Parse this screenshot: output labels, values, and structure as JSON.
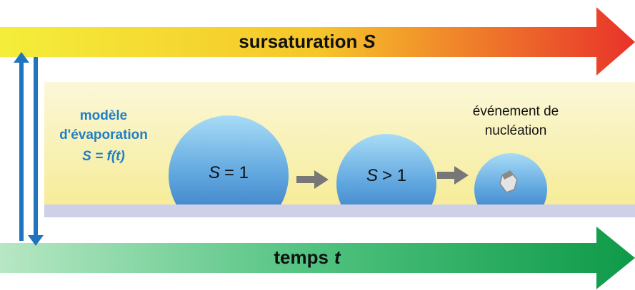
{
  "top_arrow": {
    "label": "sursaturation",
    "symbol": "S"
  },
  "bottom_arrow": {
    "label": "temps",
    "symbol": "t"
  },
  "model": {
    "lines": [
      "modèle",
      "d'évaporation"
    ],
    "equation": "S = f(t)"
  },
  "droplets": [
    {
      "symbol": "S",
      "relation": "= 1"
    },
    {
      "symbol": "S",
      "relation": "> 1"
    }
  ],
  "event": {
    "lines": [
      "événement de",
      "nucléation"
    ]
  }
}
